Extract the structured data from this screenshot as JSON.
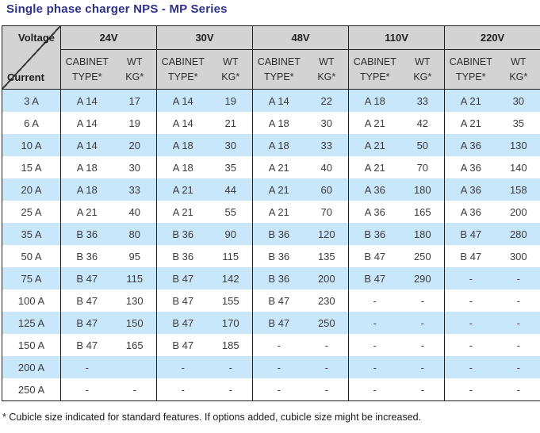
{
  "title": "Single phase charger NPS - MP Series",
  "colors": {
    "title": "#2d3092",
    "header_bg": "#d3d3d3",
    "alt_row_bg": "#c8e7fa",
    "border": "#1f1f1f",
    "cell_text": "#3b3b3b"
  },
  "table": {
    "corner": {
      "top_label": "Voltage",
      "bottom_label": "Current"
    },
    "voltage_groups": [
      "24V",
      "30V",
      "48V",
      "110V",
      "220V"
    ],
    "subheader": {
      "cabinet": [
        "CABINET",
        "TYPE*"
      ],
      "weight": [
        "WT",
        "KG*"
      ]
    },
    "rows": [
      {
        "current": "3 A",
        "cells": [
          "A 14",
          "17",
          "A 14",
          "19",
          "A 14",
          "22",
          "A 18",
          "33",
          "A 21",
          "30"
        ]
      },
      {
        "current": "6 A",
        "cells": [
          "A 14",
          "19",
          "A 14",
          "21",
          "A 18",
          "30",
          "A 21",
          "42",
          "A 21",
          "35"
        ]
      },
      {
        "current": "10 A",
        "cells": [
          "A 14",
          "20",
          "A 18",
          "30",
          "A 18",
          "33",
          "A 21",
          "50",
          "A 36",
          "130"
        ]
      },
      {
        "current": "15 A",
        "cells": [
          "A 18",
          "30",
          "A 18",
          "35",
          "A 21",
          "40",
          "A 21",
          "70",
          "A 36",
          "140"
        ]
      },
      {
        "current": "20 A",
        "cells": [
          "A 18",
          "33",
          "A 21",
          "44",
          "A 21",
          "60",
          "A 36",
          "180",
          "A 36",
          "158"
        ]
      },
      {
        "current": "25 A",
        "cells": [
          "A 21",
          "40",
          "A 21",
          "55",
          "A 21",
          "70",
          "A 36",
          "165",
          "A 36",
          "200"
        ]
      },
      {
        "current": "35 A",
        "cells": [
          "B 36",
          "80",
          "B 36",
          "90",
          "B 36",
          "120",
          "B 36",
          "180",
          "B 47",
          "280"
        ]
      },
      {
        "current": "50 A",
        "cells": [
          "B 36",
          "95",
          "B 36",
          "115",
          "B 36",
          "135",
          "B 47",
          "250",
          "B 47",
          "300"
        ]
      },
      {
        "current": "75 A",
        "cells": [
          "B 47",
          "115",
          "B 47",
          "142",
          "B 36",
          "200",
          "B 47",
          "290",
          "-",
          "-"
        ]
      },
      {
        "current": "100 A",
        "cells": [
          "B 47",
          "130",
          "B 47",
          "155",
          "B 47",
          "230",
          "-",
          "-",
          "-",
          "-"
        ]
      },
      {
        "current": "125 A",
        "cells": [
          "B 47",
          "150",
          "B 47",
          "170",
          "B 47",
          "250",
          "-",
          "-",
          "-",
          "-"
        ]
      },
      {
        "current": "150 A",
        "cells": [
          "B 47",
          "165",
          "B 47",
          "185",
          "-",
          "-",
          "-",
          "-",
          "-",
          "-"
        ]
      },
      {
        "current": "200 A",
        "cells": [
          "-",
          "",
          "-",
          "-",
          "-",
          "-",
          "-",
          "-",
          "-",
          "-"
        ]
      },
      {
        "current": "250 A",
        "cells": [
          "-",
          "-",
          "-",
          "-",
          "-",
          "-",
          "-",
          "-",
          "-",
          "-"
        ]
      }
    ],
    "layout": {
      "current_col_width": 74,
      "cabinet_col_width": 66,
      "weight_col_width": 55
    }
  },
  "footnote": "* Cubicle size indicated for standard features. If options added, cubicle size might be increased."
}
